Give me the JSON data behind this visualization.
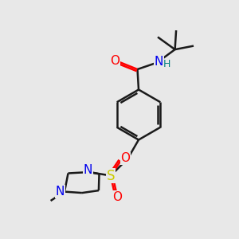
{
  "background_color": "#e8e8e8",
  "bond_color": "#1a1a1a",
  "atom_colors": {
    "O": "#ff0000",
    "N": "#0000ee",
    "S": "#cccc00",
    "H": "#008080",
    "C": "#1a1a1a"
  },
  "figsize": [
    3.0,
    3.0
  ],
  "dpi": 100
}
